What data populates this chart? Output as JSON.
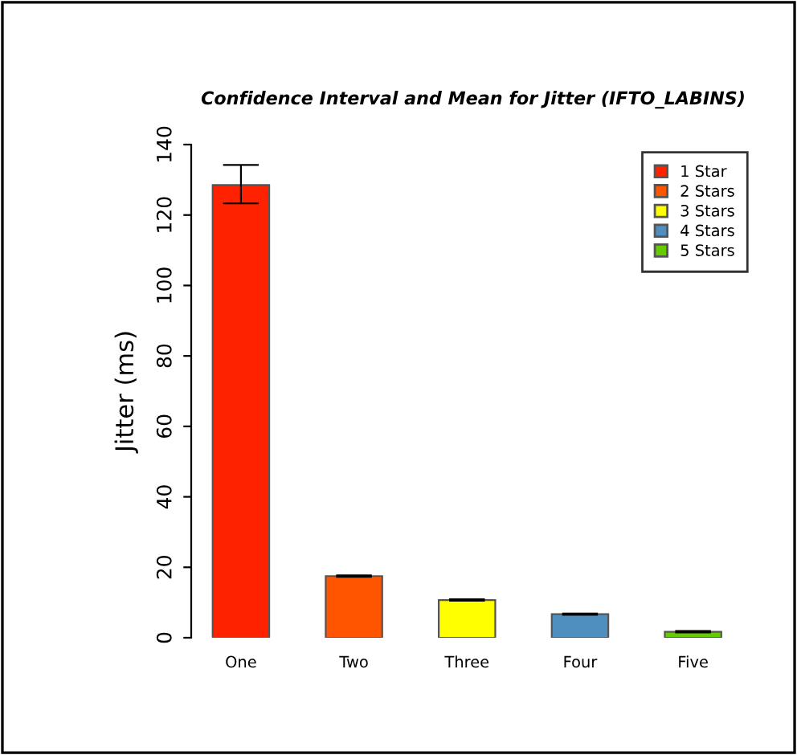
{
  "chart_data": {
    "type": "bar",
    "title": "Confidence Interval and Mean for Jitter (IFTO_LABINS)",
    "ylabel": "Jitter (ms)",
    "categories": [
      "One",
      "Two",
      "Three",
      "Four",
      "Five"
    ],
    "series": [
      {
        "name": "1 Star",
        "color": "#ff2200",
        "values": [
          128.5,
          null,
          null,
          null,
          null
        ],
        "errors": [
          [
            123.3,
            134.2
          ],
          null,
          null,
          null,
          null
        ]
      },
      {
        "name": "2 Stars",
        "color": "#ff5500",
        "values": [
          null,
          17.5,
          null,
          null,
          null
        ],
        "errors": [
          null,
          [
            17.3,
            17.7
          ],
          null,
          null,
          null
        ]
      },
      {
        "name": "3 Stars",
        "color": "#ffff00",
        "values": [
          null,
          null,
          10.7,
          null,
          null
        ],
        "errors": [
          null,
          null,
          [
            10.5,
            10.9
          ],
          null,
          null
        ]
      },
      {
        "name": "4 Stars",
        "color": "#4f8fc0",
        "values": [
          null,
          null,
          null,
          6.7,
          null
        ],
        "errors": [
          null,
          null,
          null,
          [
            6.5,
            6.9
          ],
          null
        ]
      },
      {
        "name": "5 Stars",
        "color": "#66cc00",
        "values": [
          null,
          null,
          null,
          null,
          1.7
        ],
        "errors": [
          null,
          null,
          null,
          null,
          [
            1.5,
            1.9
          ]
        ]
      }
    ],
    "ylim": [
      0,
      140
    ],
    "yticks": [
      0,
      20,
      40,
      60,
      80,
      100,
      120,
      140
    ],
    "grid": false,
    "legend": "top right"
  }
}
